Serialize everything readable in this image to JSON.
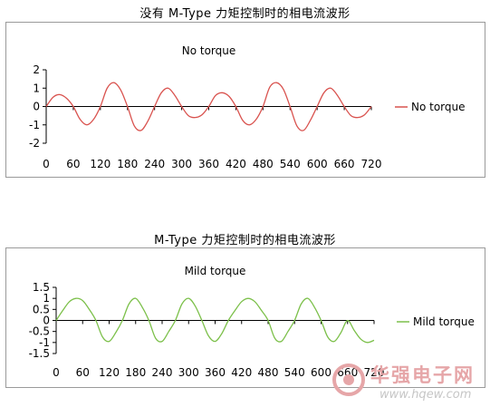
{
  "captions": {
    "top": "没有 M-Type 力矩控制时的相电流波形",
    "bottom": "M-Type 力矩控制时的相电流波形"
  },
  "colors": {
    "no_torque": "#d9534f",
    "mild_torque": "#7cc04a"
  },
  "watermark": {
    "brand": "华强电子网",
    "url": "www.hqew.com"
  },
  "chart_data": [
    {
      "type": "line",
      "title": "No torque",
      "x": [
        0,
        15,
        30,
        45,
        60,
        75,
        90,
        105,
        120,
        135,
        150,
        165,
        180,
        195,
        210,
        225,
        240,
        255,
        270,
        285,
        300,
        315,
        330,
        345,
        360,
        375,
        390,
        405,
        420,
        435,
        450,
        465,
        480,
        495,
        510,
        525,
        540,
        555,
        570,
        585,
        600,
        615,
        630,
        645,
        660,
        675,
        690,
        705,
        720
      ],
      "series": [
        {
          "name": "No torque",
          "values": [
            0,
            0.5,
            0.65,
            0.45,
            0,
            -0.7,
            -1.0,
            -0.7,
            0,
            1.0,
            1.3,
            0.9,
            0,
            -1.05,
            -1.3,
            -0.8,
            0,
            0.75,
            1.0,
            0.6,
            0,
            -0.5,
            -0.6,
            -0.45,
            0,
            0.6,
            0.75,
            0.55,
            0,
            -0.75,
            -1.0,
            -0.7,
            0,
            1.05,
            1.3,
            0.95,
            0,
            -1.05,
            -1.3,
            -0.75,
            0,
            0.75,
            1.0,
            0.6,
            0,
            -0.5,
            -0.6,
            -0.45,
            0
          ]
        }
      ],
      "xticks": [
        0,
        60,
        120,
        180,
        240,
        300,
        360,
        420,
        480,
        540,
        600,
        660,
        720
      ],
      "yticks": [
        2,
        1,
        0,
        -1,
        -2
      ],
      "xlim": [
        0,
        720
      ],
      "ylim": [
        -2,
        2
      ],
      "legend": "right",
      "grid": false
    },
    {
      "type": "line",
      "title": "Mild torque",
      "x": [
        0,
        15,
        30,
        45,
        60,
        75,
        90,
        105,
        120,
        135,
        150,
        165,
        180,
        195,
        210,
        225,
        240,
        255,
        270,
        285,
        300,
        315,
        330,
        345,
        360,
        375,
        390,
        405,
        420,
        435,
        450,
        465,
        480,
        495,
        510,
        525,
        540,
        555,
        570,
        585,
        600,
        615,
        630,
        645,
        660,
        675,
        690,
        705,
        720
      ],
      "series": [
        {
          "name": "Mild torque",
          "values": [
            0,
            0.45,
            0.85,
            1.0,
            0.9,
            0.5,
            0,
            -0.75,
            -0.95,
            -0.55,
            0,
            0.75,
            1.0,
            0.6,
            0,
            -0.8,
            -0.95,
            -0.5,
            0,
            0.75,
            1.0,
            0.65,
            0,
            -0.7,
            -0.95,
            -0.6,
            0,
            0.45,
            0.85,
            1.0,
            0.85,
            0.45,
            0,
            -0.8,
            -0.95,
            -0.5,
            0,
            0.75,
            1.0,
            0.6,
            0,
            -0.75,
            -0.95,
            -0.55,
            0,
            -0.45,
            -0.85,
            -1.0,
            -0.9
          ]
        }
      ],
      "xticks": [
        0,
        60,
        120,
        180,
        240,
        300,
        360,
        420,
        480,
        540,
        600,
        660,
        720
      ],
      "yticks": [
        1.5,
        1,
        0.5,
        0,
        -0.5,
        -1,
        -1.5
      ],
      "xlim": [
        0,
        720
      ],
      "ylim": [
        -1.5,
        1.5
      ],
      "legend": "right",
      "grid": false
    }
  ]
}
